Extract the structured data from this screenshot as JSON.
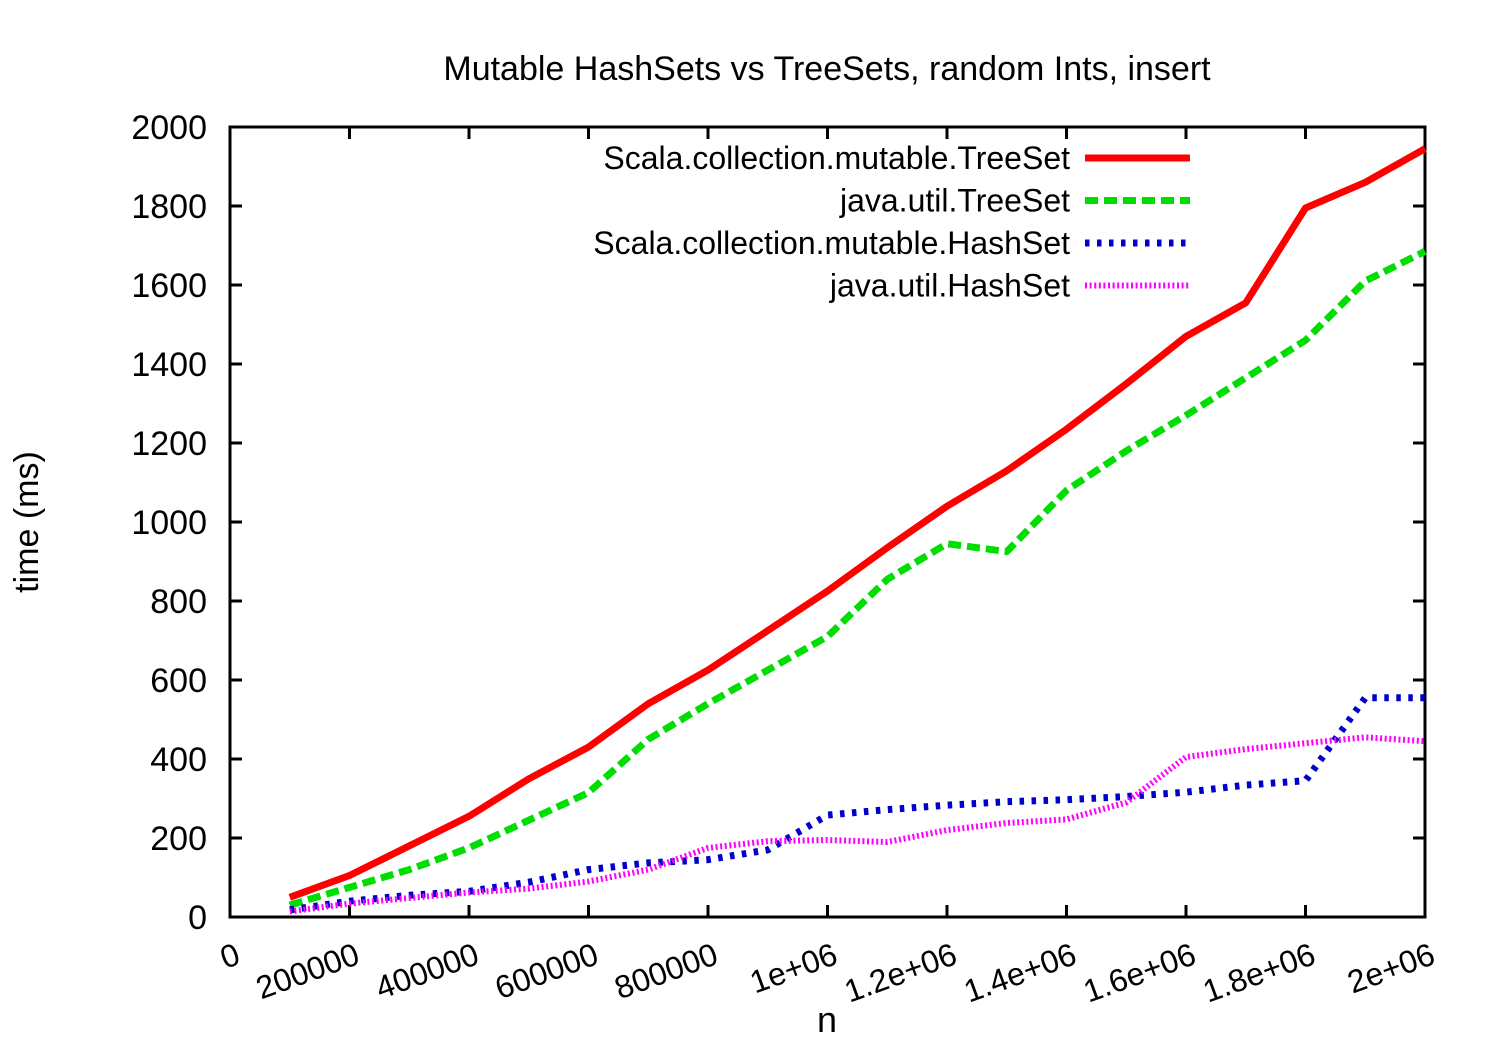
{
  "chart_data": {
    "type": "line",
    "title": "Mutable HashSets vs TreeSets, random Ints, insert",
    "xlabel": "n",
    "ylabel": "time (ms)",
    "xlim": [
      0,
      2000000
    ],
    "ylim": [
      0,
      2000
    ],
    "grid": false,
    "legend_position": "top-right-inside",
    "x_ticks": [
      {
        "value": 0,
        "label": "0"
      },
      {
        "value": 200000,
        "label": "200000"
      },
      {
        "value": 400000,
        "label": "400000"
      },
      {
        "value": 600000,
        "label": "600000"
      },
      {
        "value": 800000,
        "label": "800000"
      },
      {
        "value": 1000000,
        "label": "1e+06"
      },
      {
        "value": 1200000,
        "label": "1.2e+06"
      },
      {
        "value": 1400000,
        "label": "1.4e+06"
      },
      {
        "value": 1600000,
        "label": "1.6e+06"
      },
      {
        "value": 1800000,
        "label": "1.8e+06"
      },
      {
        "value": 2000000,
        "label": "2e+06"
      }
    ],
    "y_ticks": [
      {
        "value": 0,
        "label": "0"
      },
      {
        "value": 200,
        "label": "200"
      },
      {
        "value": 400,
        "label": "400"
      },
      {
        "value": 600,
        "label": "600"
      },
      {
        "value": 800,
        "label": "800"
      },
      {
        "value": 1000,
        "label": "1000"
      },
      {
        "value": 1200,
        "label": "1200"
      },
      {
        "value": 1400,
        "label": "1400"
      },
      {
        "value": 1600,
        "label": "1600"
      },
      {
        "value": 1800,
        "label": "1800"
      },
      {
        "value": 2000,
        "label": "2000"
      }
    ],
    "x": [
      100000,
      200000,
      300000,
      400000,
      500000,
      600000,
      700000,
      800000,
      900000,
      1000000,
      1100000,
      1200000,
      1300000,
      1400000,
      1500000,
      1600000,
      1700000,
      1800000,
      1900000,
      2000000
    ],
    "series": [
      {
        "name": "Scala.collection.mutable.TreeSet",
        "color": "#ff0000",
        "style": "solid",
        "values": [
          50,
          105,
          180,
          255,
          350,
          430,
          540,
          625,
          725,
          825,
          935,
          1040,
          1130,
          1235,
          1350,
          1470,
          1555,
          1795,
          1860,
          1945
        ]
      },
      {
        "name": "java.util.TreeSet",
        "color": "#00dd00",
        "style": "dashed",
        "values": [
          30,
          75,
          120,
          175,
          245,
          315,
          450,
          540,
          625,
          710,
          855,
          945,
          925,
          1080,
          1180,
          1270,
          1365,
          1460,
          1610,
          1685
        ]
      },
      {
        "name": "Scala.collection.mutable.HashSet",
        "color": "#0000cc",
        "style": "dotted",
        "values": [
          18,
          40,
          55,
          65,
          88,
          120,
          137,
          145,
          170,
          258,
          272,
          283,
          292,
          297,
          305,
          316,
          334,
          345,
          555,
          555
        ]
      },
      {
        "name": "java.util.HashSet",
        "color": "#ff00ff",
        "style": "fine-dotted",
        "values": [
          14,
          34,
          48,
          62,
          72,
          90,
          120,
          175,
          192,
          195,
          190,
          220,
          238,
          247,
          290,
          405,
          425,
          440,
          455,
          445
        ]
      }
    ]
  }
}
